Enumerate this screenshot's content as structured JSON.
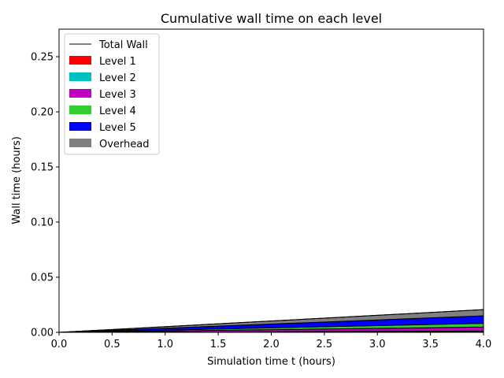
{
  "chart_data": {
    "type": "area",
    "title": "Cumulative wall time on each level",
    "xlabel": "Simulation time t (hours)",
    "ylabel": "Wall time (hours)",
    "xlim": [
      0,
      4
    ],
    "ylim": [
      0,
      0.275
    ],
    "x_ticks": [
      "0.0",
      "0.5",
      "1.0",
      "1.5",
      "2.0",
      "2.5",
      "3.0",
      "3.5",
      "4.0"
    ],
    "y_ticks": [
      "0.00",
      "0.05",
      "0.10",
      "0.15",
      "0.20",
      "0.25"
    ],
    "grid": false,
    "stacked": true,
    "legend_position": "upper-left",
    "x": [
      0,
      4
    ],
    "series": [
      {
        "name": "Level 1",
        "color": "#ff0000",
        "values": [
          0,
          0.0004
        ]
      },
      {
        "name": "Level 2",
        "color": "#00bfbf",
        "values": [
          0,
          0.0008
        ]
      },
      {
        "name": "Level 3",
        "color": "#bf00bf",
        "values": [
          0,
          0.0036
        ]
      },
      {
        "name": "Level 4",
        "color": "#32cd32",
        "values": [
          0,
          0.0033
        ]
      },
      {
        "name": "Level 5",
        "color": "#0000ff",
        "values": [
          0,
          0.0069
        ]
      },
      {
        "name": "Overhead",
        "color": "#808080",
        "values": [
          0,
          0.0056
        ]
      }
    ],
    "total_line": {
      "name": "Total Wall",
      "color": "#000000",
      "values": [
        0,
        0.0206
      ]
    }
  }
}
